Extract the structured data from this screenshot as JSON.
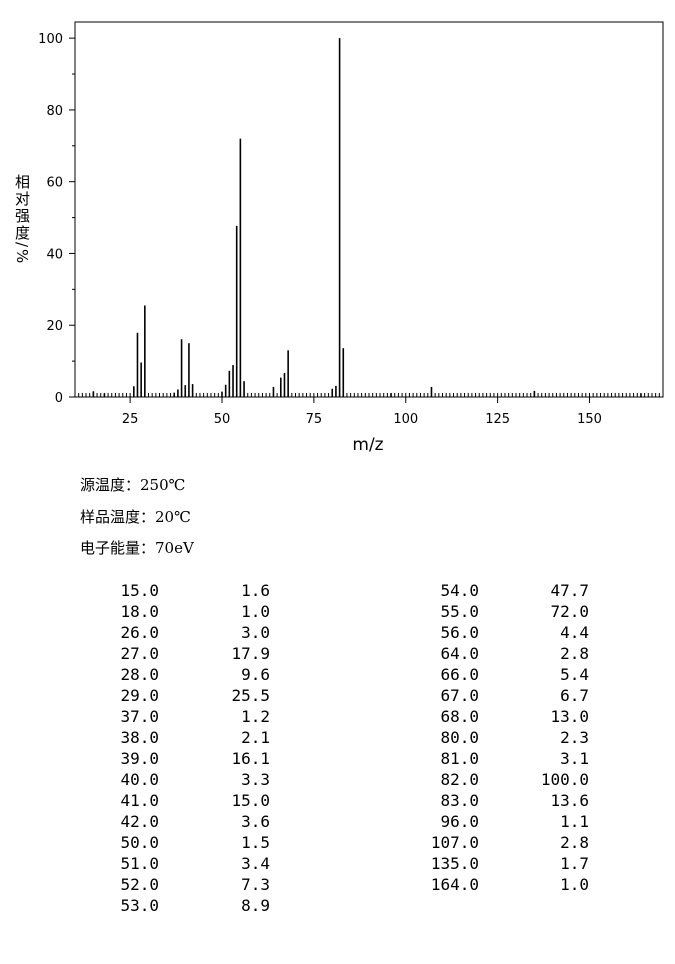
{
  "chart_data": {
    "type": "bar",
    "x": [
      15,
      18,
      26,
      27,
      28,
      29,
      37,
      38,
      39,
      40,
      41,
      42,
      50,
      51,
      52,
      53,
      54,
      55,
      56,
      64,
      66,
      67,
      68,
      80,
      81,
      82,
      83,
      96,
      107,
      135,
      164
    ],
    "x_labels": [
      "15.0",
      "18.0",
      "26.0",
      "27.0",
      "28.0",
      "29.0",
      "37.0",
      "38.0",
      "39.0",
      "40.0",
      "41.0",
      "42.0",
      "50.0",
      "51.0",
      "52.0",
      "53.0",
      "54.0",
      "55.0",
      "56.0",
      "64.0",
      "66.0",
      "67.0",
      "68.0",
      "80.0",
      "81.0",
      "82.0",
      "83.0",
      "96.0",
      "107.0",
      "135.0",
      "164.0"
    ],
    "values": [
      1.6,
      1.0,
      3.0,
      17.9,
      9.6,
      25.5,
      1.2,
      2.1,
      16.1,
      3.3,
      15.0,
      3.6,
      1.5,
      3.4,
      7.3,
      8.9,
      47.7,
      72.0,
      4.4,
      2.8,
      5.4,
      6.7,
      13.0,
      2.3,
      3.1,
      100.0,
      13.6,
      1.1,
      2.8,
      1.7,
      1.0
    ],
    "value_labels": [
      "1.6",
      "1.0",
      "3.0",
      "17.9",
      "9.6",
      "25.5",
      "1.2",
      "2.1",
      "16.1",
      "3.3",
      "15.0",
      "3.6",
      "1.5",
      "3.4",
      "7.3",
      "8.9",
      "47.7",
      "72.0",
      "4.4",
      "2.8",
      "5.4",
      "6.7",
      "13.0",
      "2.3",
      "3.1",
      "100.0",
      "13.6",
      "1.1",
      "2.8",
      "1.7",
      "1.0"
    ],
    "color": "#000000",
    "xlim": [
      10,
      170
    ],
    "ylim": [
      0,
      104.5
    ],
    "xticks": [
      25,
      50,
      75,
      100,
      125,
      150
    ],
    "yticks": [
      0,
      20,
      40,
      60,
      80,
      100
    ],
    "xlabel": "m/z",
    "ylabel": "相对强度/%"
  },
  "conditions": [
    "源温度：250℃",
    "样品温度：20℃",
    "电子能量：70eV"
  ]
}
